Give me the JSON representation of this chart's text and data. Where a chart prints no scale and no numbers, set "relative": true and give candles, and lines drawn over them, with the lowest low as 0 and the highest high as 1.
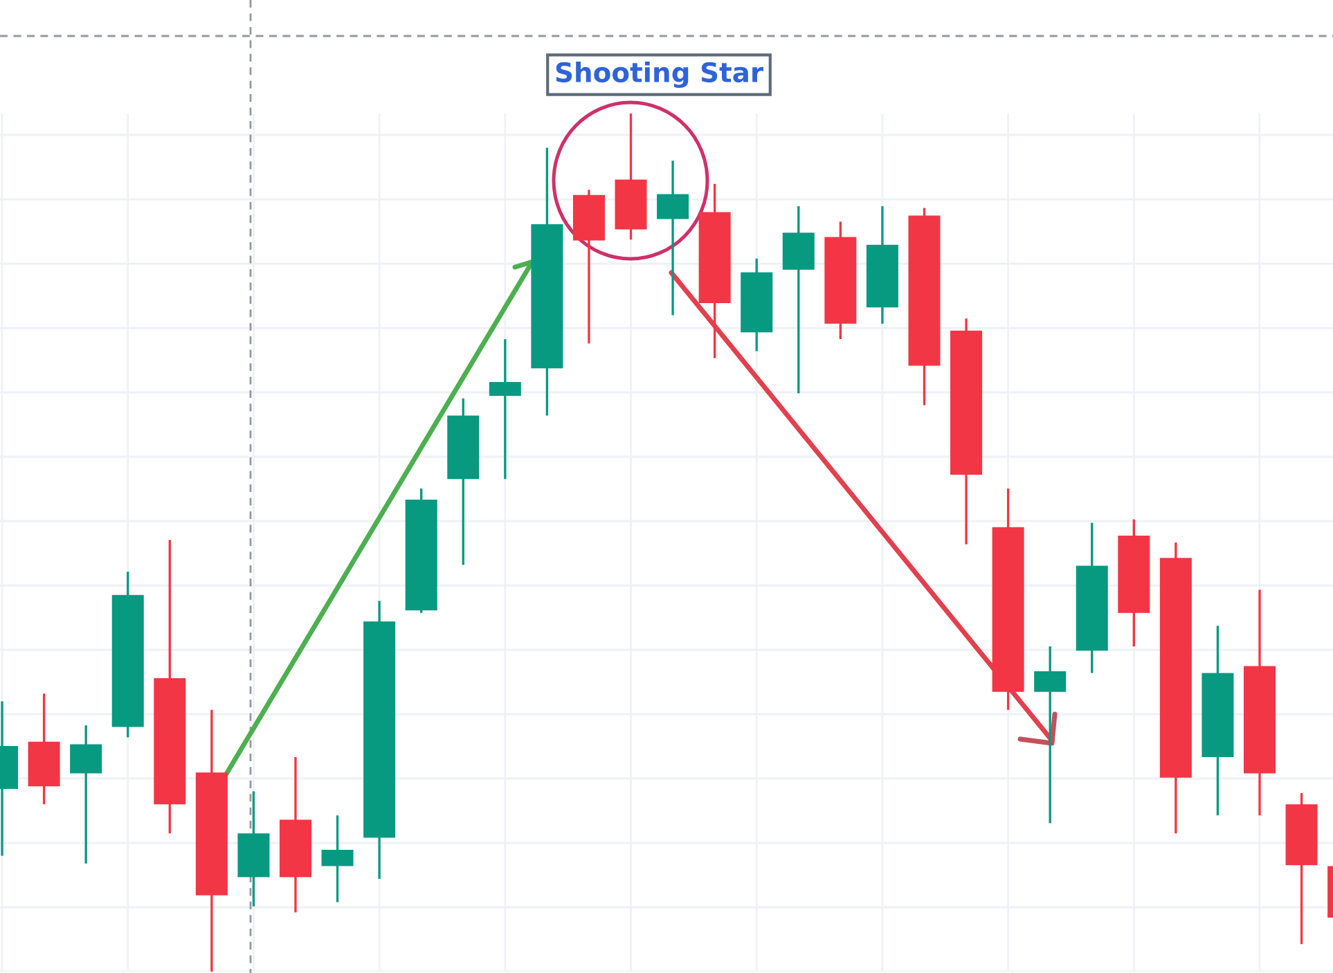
{
  "chart_data": {
    "type": "candlestick",
    "relative": true,
    "categories": [
      null,
      null,
      null,
      null,
      null,
      null,
      null,
      null,
      null,
      null,
      null,
      null,
      null,
      null,
      null,
      null,
      null,
      null,
      null,
      null,
      null,
      null,
      null,
      null,
      null,
      null,
      null,
      null,
      null,
      null,
      null,
      null,
      null
    ],
    "ohlc": [
      [
        0.213,
        0.315,
        0.135,
        0.263
      ],
      [
        0.268,
        0.324,
        0.195,
        0.216
      ],
      [
        0.231,
        0.287,
        0.126,
        0.265
      ],
      [
        0.285,
        0.466,
        0.273,
        0.439
      ],
      [
        0.342,
        0.503,
        0.161,
        0.195
      ],
      [
        0.232,
        0.305,
        0.0,
        0.089
      ],
      [
        0.11,
        0.21,
        0.076,
        0.161
      ],
      [
        0.177,
        0.25,
        0.069,
        0.11
      ],
      [
        0.123,
        0.182,
        0.081,
        0.142
      ],
      [
        0.156,
        0.432,
        0.108,
        0.408
      ],
      [
        0.421,
        0.563,
        0.418,
        0.55
      ],
      [
        0.574,
        0.668,
        0.474,
        0.648
      ],
      [
        0.671,
        0.737,
        0.574,
        0.687
      ],
      [
        0.703,
        0.96,
        0.648,
        0.871
      ],
      [
        0.905,
        0.911,
        0.732,
        0.852
      ],
      [
        0.923,
        1.0,
        0.853,
        0.865
      ],
      [
        0.877,
        0.945,
        0.765,
        0.906
      ],
      [
        0.885,
        0.918,
        0.715,
        0.779
      ],
      [
        0.745,
        0.831,
        0.723,
        0.815
      ],
      [
        0.818,
        0.892,
        0.674,
        0.861
      ],
      [
        0.856,
        0.874,
        0.737,
        0.755
      ],
      [
        0.774,
        0.892,
        0.755,
        0.847
      ],
      [
        0.881,
        0.89,
        0.66,
        0.706
      ],
      [
        0.747,
        0.761,
        0.498,
        0.579
      ],
      [
        0.518,
        0.563,
        0.305,
        0.326
      ],
      [
        0.326,
        0.379,
        0.173,
        0.35
      ],
      [
        0.374,
        0.523,
        0.348,
        0.473
      ],
      [
        0.508,
        0.527,
        0.379,
        0.418
      ],
      [
        0.482,
        0.5,
        0.161,
        0.226
      ],
      [
        0.25,
        0.403,
        0.182,
        0.348
      ],
      [
        0.356,
        0.445,
        0.182,
        0.231
      ],
      [
        0.195,
        0.208,
        0.032,
        0.124
      ],
      [
        0.123,
        0.123,
        0.063,
        0.063
      ]
    ],
    "colors": [
      "#089981",
      "#f23645",
      "#089981",
      "#089981",
      "#f23645",
      "#f23645",
      "#089981",
      "#f23645",
      "#089981",
      "#089981",
      "#089981",
      "#089981",
      "#089981",
      "#089981",
      "#f23645",
      "#f23645",
      "#089981",
      "#f23645",
      "#089981",
      "#089981",
      "#f23645",
      "#089981",
      "#f23645",
      "#f23645",
      "#f23645",
      "#089981",
      "#089981",
      "#f23645",
      "#f23645",
      "#089981",
      "#f23645",
      "#f23645",
      "#f23645"
    ],
    "annotations": [
      "Shooting Star"
    ],
    "grid": true
  }
}
